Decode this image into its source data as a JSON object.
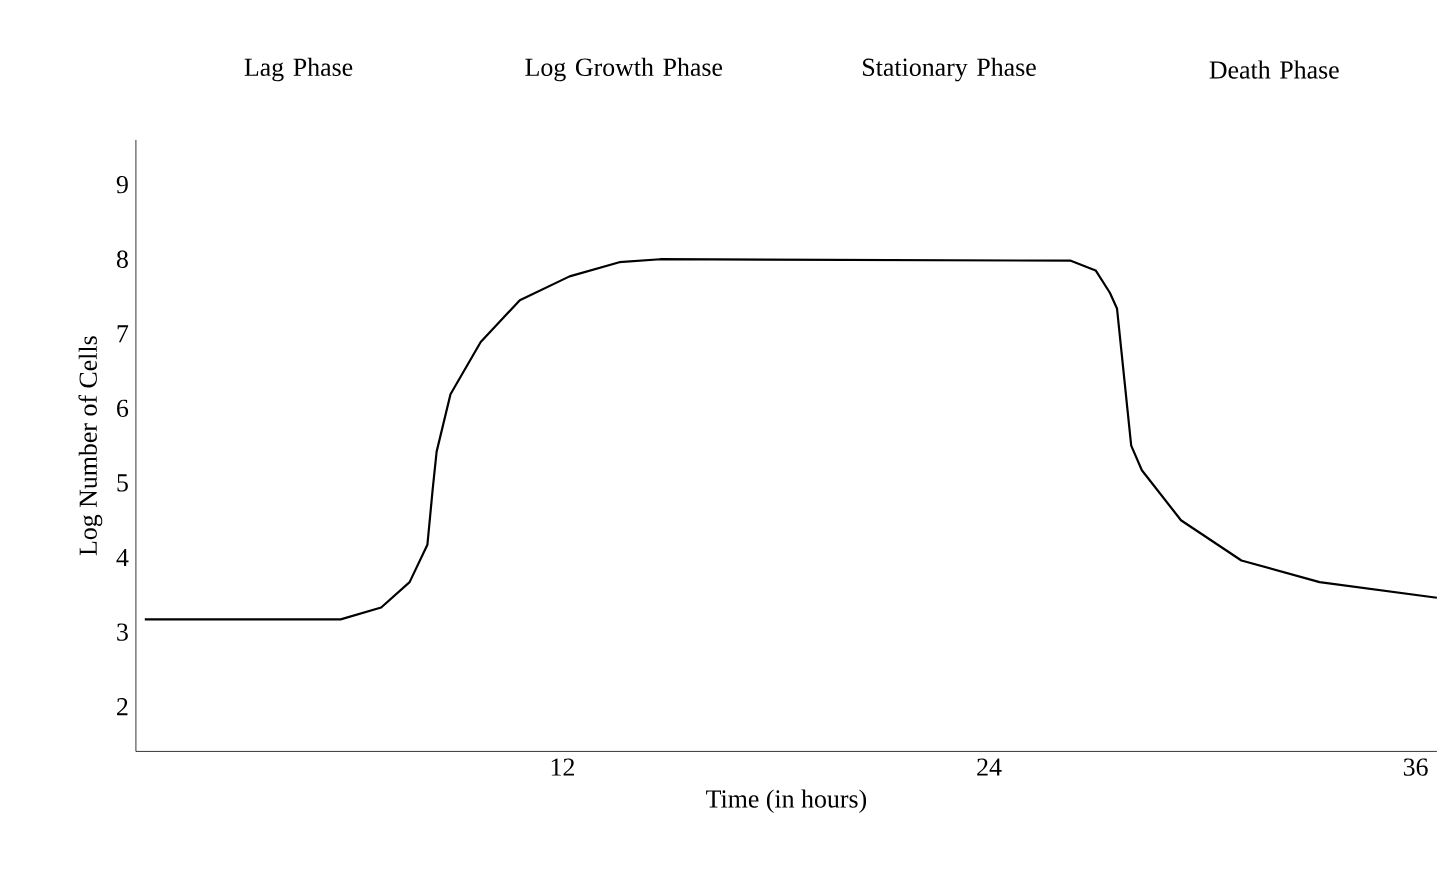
{
  "chart_data": {
    "type": "line",
    "xlabel": "Time (in hours)",
    "ylabel": "Log Number of Cells",
    "annotations": [
      "Lag Phase",
      "Log Growth Phase",
      "Stationary Phase",
      "Death Phase"
    ],
    "x": [
      0.25,
      5.76,
      6.9,
      7.7,
      8.2,
      8.35,
      8.46,
      8.85,
      9.7,
      10.8,
      12.2,
      13.6,
      14.75,
      26.3,
      27.0,
      27.4,
      27.6,
      28.0,
      28.3,
      29.4,
      31.1,
      33.3,
      36.6
    ],
    "series": [
      {
        "color": "#000000",
        "values": [
          3.17,
          3.17,
          3.33,
          3.67,
          4.17,
          4.92,
          5.42,
          6.19,
          6.89,
          7.45,
          7.77,
          7.96,
          8.0,
          7.98,
          7.85,
          7.55,
          7.34,
          5.5,
          5.17,
          4.5,
          3.96,
          3.67,
          3.46
        ]
      }
    ],
    "xlim": [
      0,
      36.6
    ],
    "ylim": [
      1.4,
      9.6
    ],
    "xticks": [
      12,
      24,
      36
    ],
    "yticks": [
      2,
      3,
      4,
      5,
      6,
      7,
      8,
      9
    ],
    "grid": false,
    "marker": "none",
    "line_style": "solid"
  }
}
